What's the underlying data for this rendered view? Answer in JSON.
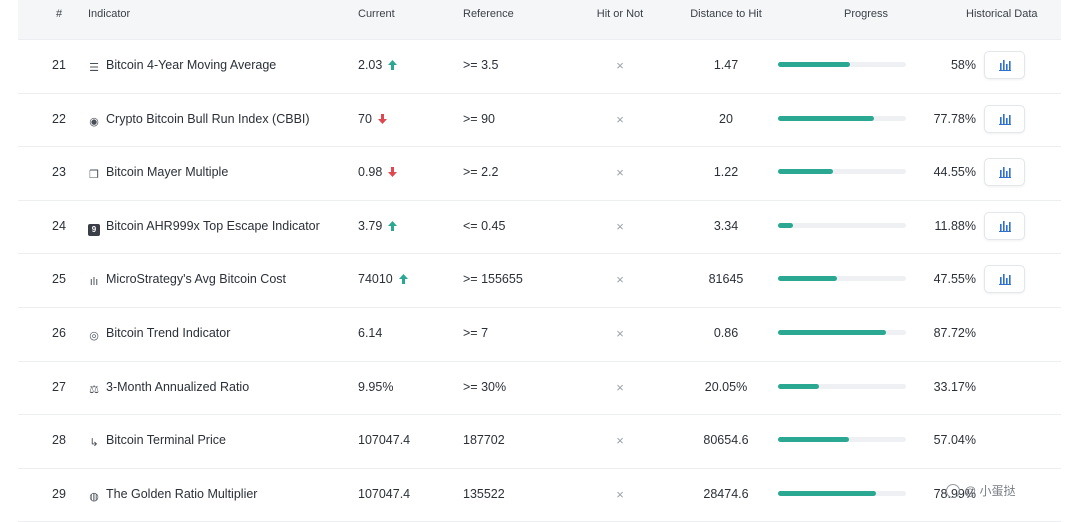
{
  "columns": {
    "num": "#",
    "indicator": "Indicator",
    "current": "Current",
    "reference": "Reference",
    "hit": "Hit or Not",
    "distance": "Distance to Hit",
    "progress": "Progress",
    "historical": "Historical Data"
  },
  "colors": {
    "progress_fill": "#2aa891",
    "arrow_up": "#2aa891",
    "arrow_down": "#e0484f"
  },
  "rows": [
    {
      "num": "21",
      "icon": "list-lines-icon",
      "name": "Bitcoin 4-Year Moving Average",
      "current": "2.03",
      "trend": "up",
      "reference": ">= 3.5",
      "hit": "×",
      "distance": "1.47",
      "progress": 0.58,
      "progress_label": "58%",
      "has_history": true
    },
    {
      "num": "22",
      "icon": "circle-coin-icon",
      "name": "Crypto Bitcoin Bull Run Index (CBBI)",
      "current": "70",
      "trend": "down",
      "reference": ">= 90",
      "hit": "×",
      "distance": "20",
      "progress": 0.7778,
      "progress_label": "77.78%",
      "has_history": true
    },
    {
      "num": "23",
      "icon": "copy-pages-icon",
      "name": "Bitcoin Mayer Multiple",
      "current": "0.98",
      "trend": "down",
      "reference": ">= 2.2",
      "hit": "×",
      "distance": "1.22",
      "progress": 0.4455,
      "progress_label": "44.55%",
      "has_history": true
    },
    {
      "num": "24",
      "icon": "square-nine-icon",
      "name": "Bitcoin AHR999x Top Escape Indicator",
      "current": "3.79",
      "trend": "up",
      "reference": "<= 0.45",
      "hit": "×",
      "distance": "3.34",
      "progress": 0.1188,
      "progress_label": "11.88%",
      "has_history": true
    },
    {
      "num": "25",
      "icon": "bar-chart-icon",
      "name": "MicroStrategy's Avg Bitcoin Cost",
      "current": "74010",
      "trend": "up",
      "reference": ">= 155655",
      "hit": "×",
      "distance": "81645",
      "progress": 0.4755,
      "progress_label": "47.55%",
      "has_history": true
    },
    {
      "num": "26",
      "icon": "target-circle-icon",
      "name": "Bitcoin Trend Indicator",
      "current": "6.14",
      "trend": "",
      "reference": ">= 7",
      "hit": "×",
      "distance": "0.86",
      "progress": 0.8772,
      "progress_label": "87.72%",
      "has_history": false
    },
    {
      "num": "27",
      "icon": "balance-scale-icon",
      "name": "3-Month Annualized Ratio",
      "current": "9.95%",
      "trend": "",
      "reference": ">= 30%",
      "hit": "×",
      "distance": "20.05%",
      "progress": 0.3317,
      "progress_label": "33.17%",
      "has_history": false
    },
    {
      "num": "28",
      "icon": "terminal-tick-icon",
      "name": "Bitcoin Terminal Price",
      "current": "107047.4",
      "trend": "",
      "reference": "187702",
      "hit": "×",
      "distance": "80654.6",
      "progress": 0.5704,
      "progress_label": "57.04%",
      "has_history": false
    },
    {
      "num": "29",
      "icon": "golden-ratio-icon",
      "name": "The Golden Ratio Multiplier",
      "current": "107047.4",
      "trend": "",
      "reference": "135522",
      "hit": "×",
      "distance": "28474.6",
      "progress": 0.7899,
      "progress_label": "78.99%",
      "has_history": false
    }
  ],
  "watermark": {
    "text": "@ 小蛋挞"
  }
}
